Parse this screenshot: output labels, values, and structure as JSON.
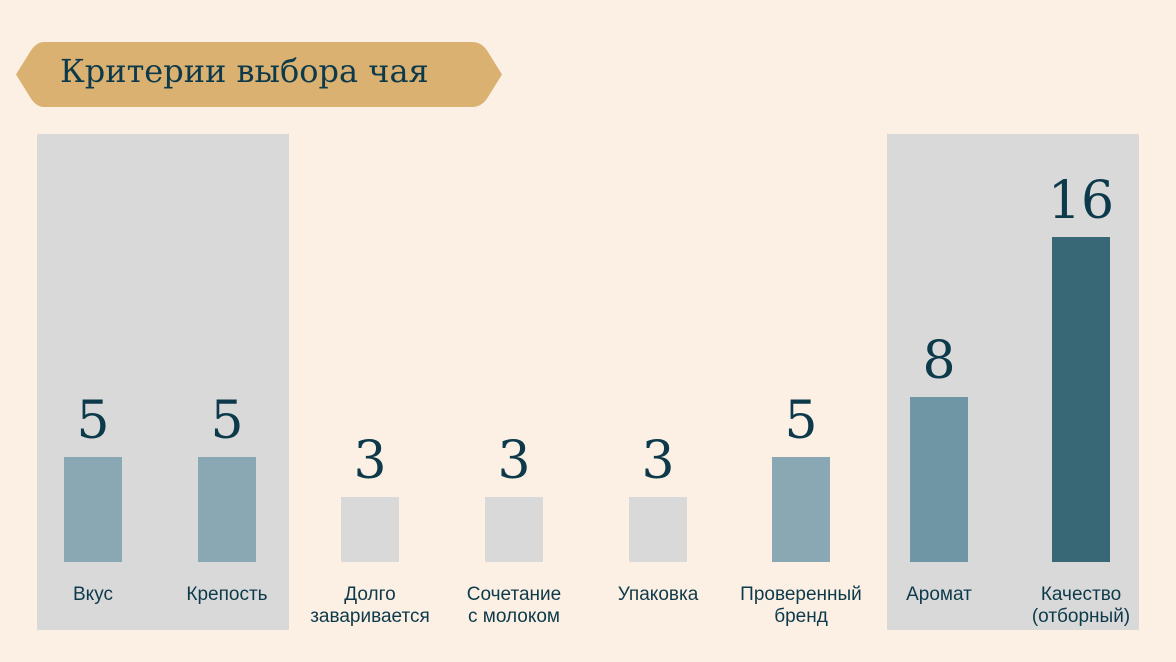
{
  "chart_data": {
    "type": "bar",
    "title": "Критерии выбора чая",
    "categories": [
      "Вкус",
      "Крепость",
      "Долго заваривается",
      "Сочетание с молоком",
      "Упаковка",
      "Проверенный бренд",
      "Аромат",
      "Качество (отборный)"
    ],
    "label_lines": [
      [
        "Вкус"
      ],
      [
        "Крепость"
      ],
      [
        "Долго",
        "заваривается"
      ],
      [
        "Сочетание",
        "с молоком"
      ],
      [
        "Упаковка"
      ],
      [
        "Проверенный",
        "бренд"
      ],
      [
        "Аромат"
      ],
      [
        "Качество",
        "(отборный)"
      ]
    ],
    "values": [
      5,
      5,
      3,
      3,
      3,
      5,
      8,
      16
    ],
    "bar_colors": [
      "#8aa8b4",
      "#8aa8b4",
      "#d9d9d9",
      "#d9d9d9",
      "#d9d9d9",
      "#8aa8b4",
      "#6e96a5",
      "#386776"
    ],
    "highlighted_groups": [
      [
        0,
        1
      ],
      [
        6,
        7
      ]
    ],
    "xlabel": "",
    "ylabel": "",
    "ylim": [
      0,
      16
    ],
    "grid": false
  },
  "colors": {
    "background": "#fcefe4",
    "banner": "#dab171",
    "text": "#0d3a4a",
    "panel": "#d9d9d9"
  }
}
